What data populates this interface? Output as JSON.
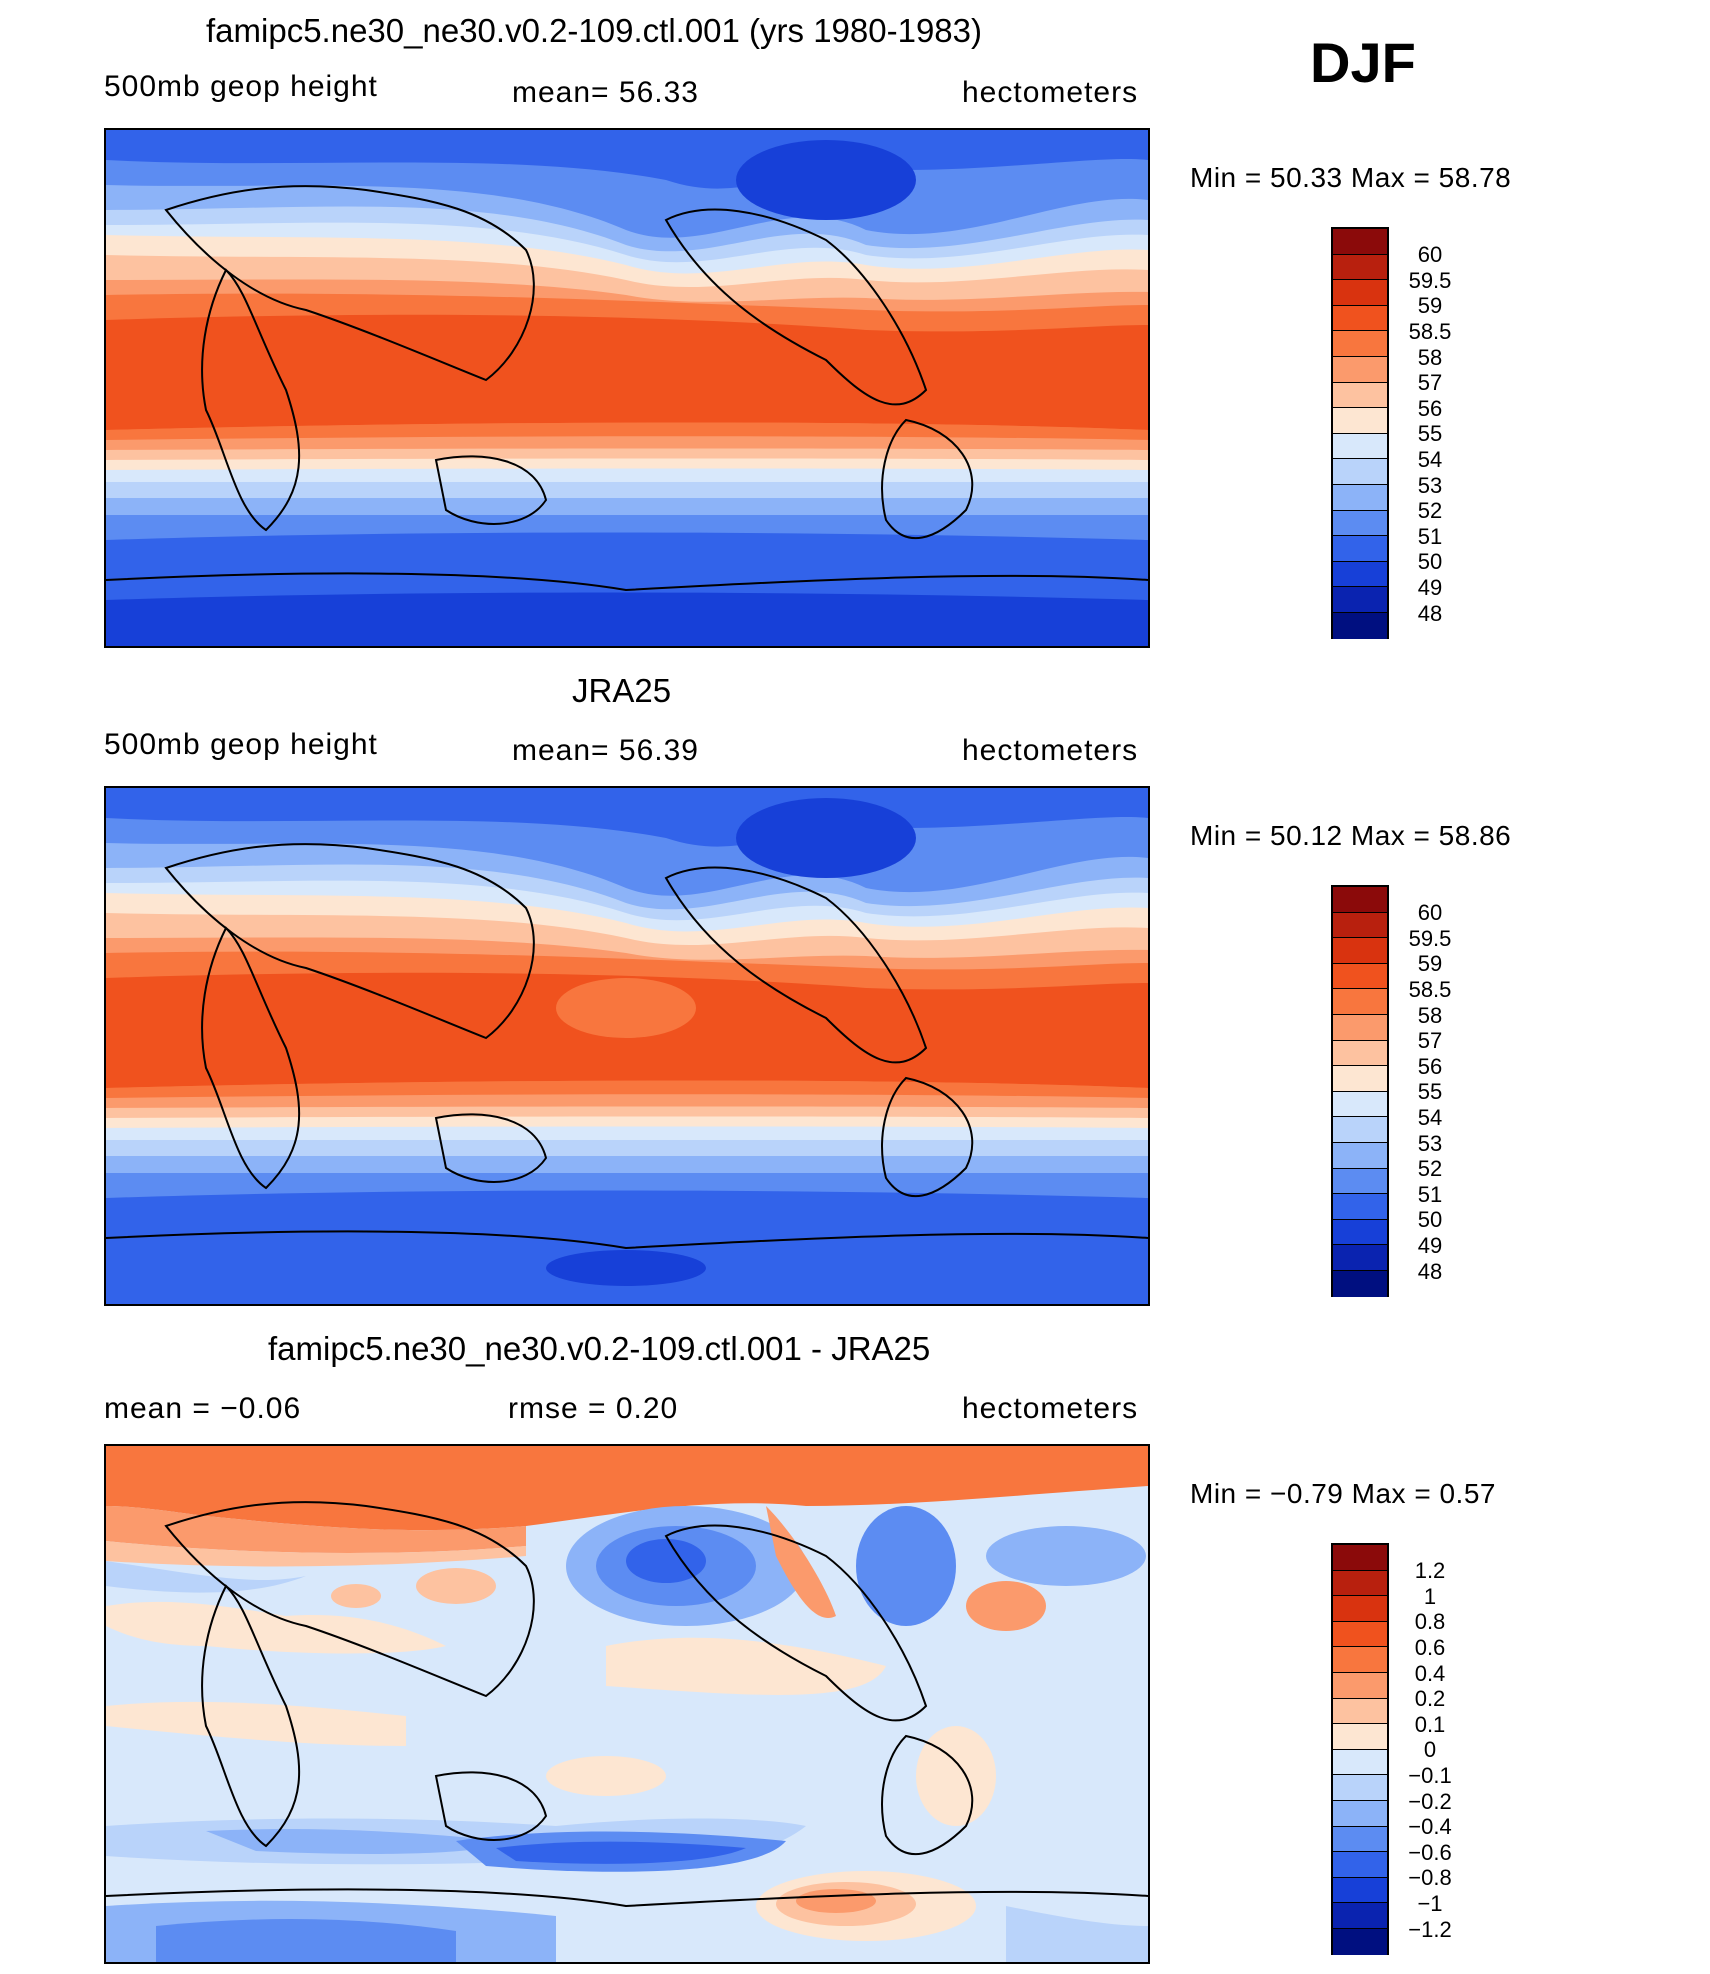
{
  "season": "DJF",
  "panels": [
    {
      "title": "famipc5.ne30_ne30.v0.2-109.ctl.001 (yrs 1980-1983)",
      "left_label": "500mb geop height",
      "mid_label": "mean=  56.33",
      "right_label": "hectometers",
      "minmax": "Min =   50.33 Max =   58.78",
      "colorbar_labels": [
        "60",
        "59.5",
        "59",
        "58.5",
        "58",
        "57",
        "56",
        "55",
        "54",
        "53",
        "52",
        "51",
        "50",
        "49",
        "48"
      ],
      "min": 50.33,
      "max": 58.78,
      "mean": 56.33
    },
    {
      "title": "JRA25",
      "left_label": "500mb geop height",
      "mid_label": "mean=  56.39",
      "right_label": "hectometers",
      "minmax": "Min =   50.12 Max =   58.86",
      "colorbar_labels": [
        "60",
        "59.5",
        "59",
        "58.5",
        "58",
        "57",
        "56",
        "55",
        "54",
        "53",
        "52",
        "51",
        "50",
        "49",
        "48"
      ],
      "min": 50.12,
      "max": 58.86,
      "mean": 56.39
    },
    {
      "title": "famipc5.ne30_ne30.v0.2-109.ctl.001 - JRA25",
      "left_label": "mean =   −0.06",
      "mid_label": "rmse =    0.20",
      "right_label": "hectometers",
      "minmax": "Min =   −0.79 Max =    0.57",
      "colorbar_labels": [
        "1.2",
        "1",
        "0.8",
        "0.6",
        "0.4",
        "0.2",
        "0.1",
        "0",
        "−0.1",
        "−0.2",
        "−0.4",
        "−0.6",
        "−0.8",
        "−1",
        "−1.2"
      ],
      "min": -0.79,
      "max": 0.57,
      "mean": -0.06,
      "rmse": 0.2
    }
  ],
  "colors": {
    "colorbar": [
      "#8b0a0a",
      "#b8200e",
      "#d9330f",
      "#f0521e",
      "#f8763e",
      "#fb9a6c",
      "#fdc2a0",
      "#fde6d2",
      "#d8e8fb",
      "#b9d3fa",
      "#8cb3f8",
      "#5c8cf2",
      "#3263ea",
      "#1740d8",
      "#0a23b0",
      "#000f80"
    ],
    "land_outline": "#000000"
  }
}
